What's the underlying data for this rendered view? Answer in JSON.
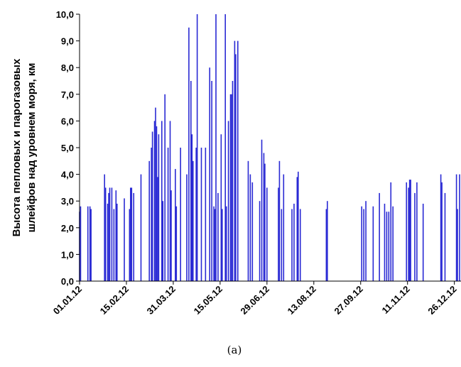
{
  "chart_data": {
    "type": "bar",
    "caption": "(a)",
    "y_label": [
      "Высота пепловых и парогазовых",
      "шлейфов над уровнем моря, км"
    ],
    "color": "#2a2ad4",
    "xlim": [
      "01.01.12",
      "31.12.12"
    ],
    "xticks": [
      "01.01.12",
      "15.02.12",
      "31.03.12",
      "15.05.12",
      "29.06.12",
      "13.08.12",
      "27.09.12",
      "11.11.12",
      "26.12.12"
    ],
    "ylim": [
      0,
      10
    ],
    "yticks": [
      {
        "value": 0,
        "label": "0,0"
      },
      {
        "value": 1,
        "label": "1,0"
      },
      {
        "value": 2,
        "label": "2,0"
      },
      {
        "value": 3,
        "label": "3,0"
      },
      {
        "value": 4,
        "label": "4,0"
      },
      {
        "value": 5,
        "label": "5,0"
      },
      {
        "value": 6,
        "label": "6,0"
      },
      {
        "value": 7,
        "label": "7,0"
      },
      {
        "value": 8,
        "label": "8,0"
      },
      {
        "value": 9,
        "label": "9,0"
      },
      {
        "value": 10,
        "label": "10,0"
      }
    ],
    "x": [
      "01.01.12",
      "02.01.12",
      "09.01.12",
      "11.01.12",
      "12.01.12",
      "25.01.12",
      "26.01.12",
      "28.01.12",
      "29.01.12",
      "30.01.12",
      "01.02.12",
      "03.02.12",
      "05.02.12",
      "06.02.12",
      "13.02.12",
      "18.02.12",
      "19.02.12",
      "20.02.12",
      "22.02.12",
      "29.02.12",
      "08.03.12",
      "10.03.12",
      "11.03.12",
      "13.03.12",
      "14.03.12",
      "15.03.12",
      "16.03.12",
      "17.03.12",
      "20.03.12",
      "21.03.12",
      "23.03.12",
      "26.03.12",
      "28.03.12",
      "29.03.12",
      "02.04.12",
      "03.04.12",
      "07.04.12",
      "13.04.12",
      "15.04.12",
      "17.04.12",
      "18.04.12",
      "19.04.12",
      "22.04.12",
      "23.04.12",
      "27.04.12",
      "01.05.12",
      "05.05.12",
      "07.05.12",
      "09.05.12",
      "10.05.12",
      "11.05.12",
      "13.05.12",
      "16.05.12",
      "17.05.12",
      "20.05.12",
      "21.05.12",
      "23.05.12",
      "25.05.12",
      "26.05.12",
      "27.05.12",
      "29.05.12",
      "30.05.12",
      "01.06.12",
      "11.06.12",
      "13.06.12",
      "15.06.12",
      "22.06.12",
      "24.06.12",
      "26.06.12",
      "27.06.12",
      "29.06.12",
      "10.07.12",
      "11.07.12",
      "13.07.12",
      "15.07.12",
      "23.07.12",
      "25.07.12",
      "28.07.12",
      "29.07.12",
      "31.07.12",
      "25.08.12",
      "26.08.12",
      "28.09.12",
      "30.09.12",
      "02.10.12",
      "09.10.12",
      "15.10.12",
      "20.10.12",
      "22.10.12",
      "24.10.12",
      "26.10.12",
      "28.10.12",
      "10.11.12",
      "12.11.12",
      "13.11.12",
      "14.11.12",
      "18.11.12",
      "20.11.12",
      "26.11.12",
      "13.12.12",
      "14.12.12",
      "17.12.12",
      "28.12.12",
      "29.12.12",
      "31.12.12"
    ],
    "values": [
      2.6,
      2.8,
      2.8,
      2.8,
      2.7,
      4.0,
      3.5,
      2.9,
      3.3,
      3.5,
      3.5,
      2.7,
      3.4,
      2.9,
      3.1,
      2.7,
      3.5,
      3.5,
      3.3,
      4.0,
      4.5,
      5.0,
      5.6,
      6.0,
      6.5,
      5.8,
      3.9,
      5.5,
      6.0,
      3.0,
      7.0,
      5.0,
      6.0,
      3.4,
      4.2,
      2.8,
      5.0,
      4.0,
      9.5,
      7.5,
      5.5,
      4.5,
      5.0,
      10.0,
      5.0,
      5.0,
      8.0,
      7.5,
      2.8,
      2.7,
      10.0,
      3.3,
      5.5,
      2.7,
      10.0,
      2.8,
      6.0,
      7.0,
      7.0,
      7.5,
      9.0,
      8.5,
      9.0,
      4.5,
      4.0,
      3.7,
      3.0,
      5.3,
      4.8,
      4.4,
      3.5,
      3.5,
      4.5,
      2.7,
      4.0,
      2.7,
      2.9,
      3.9,
      4.1,
      2.7,
      2.7,
      3.0,
      2.8,
      2.7,
      3.0,
      2.8,
      3.3,
      2.9,
      2.6,
      2.6,
      3.7,
      2.8,
      3.7,
      3.5,
      3.8,
      3.8,
      3.3,
      3.7,
      2.9,
      4.0,
      3.7,
      3.3,
      4.0,
      2.7,
      4.0
    ]
  }
}
